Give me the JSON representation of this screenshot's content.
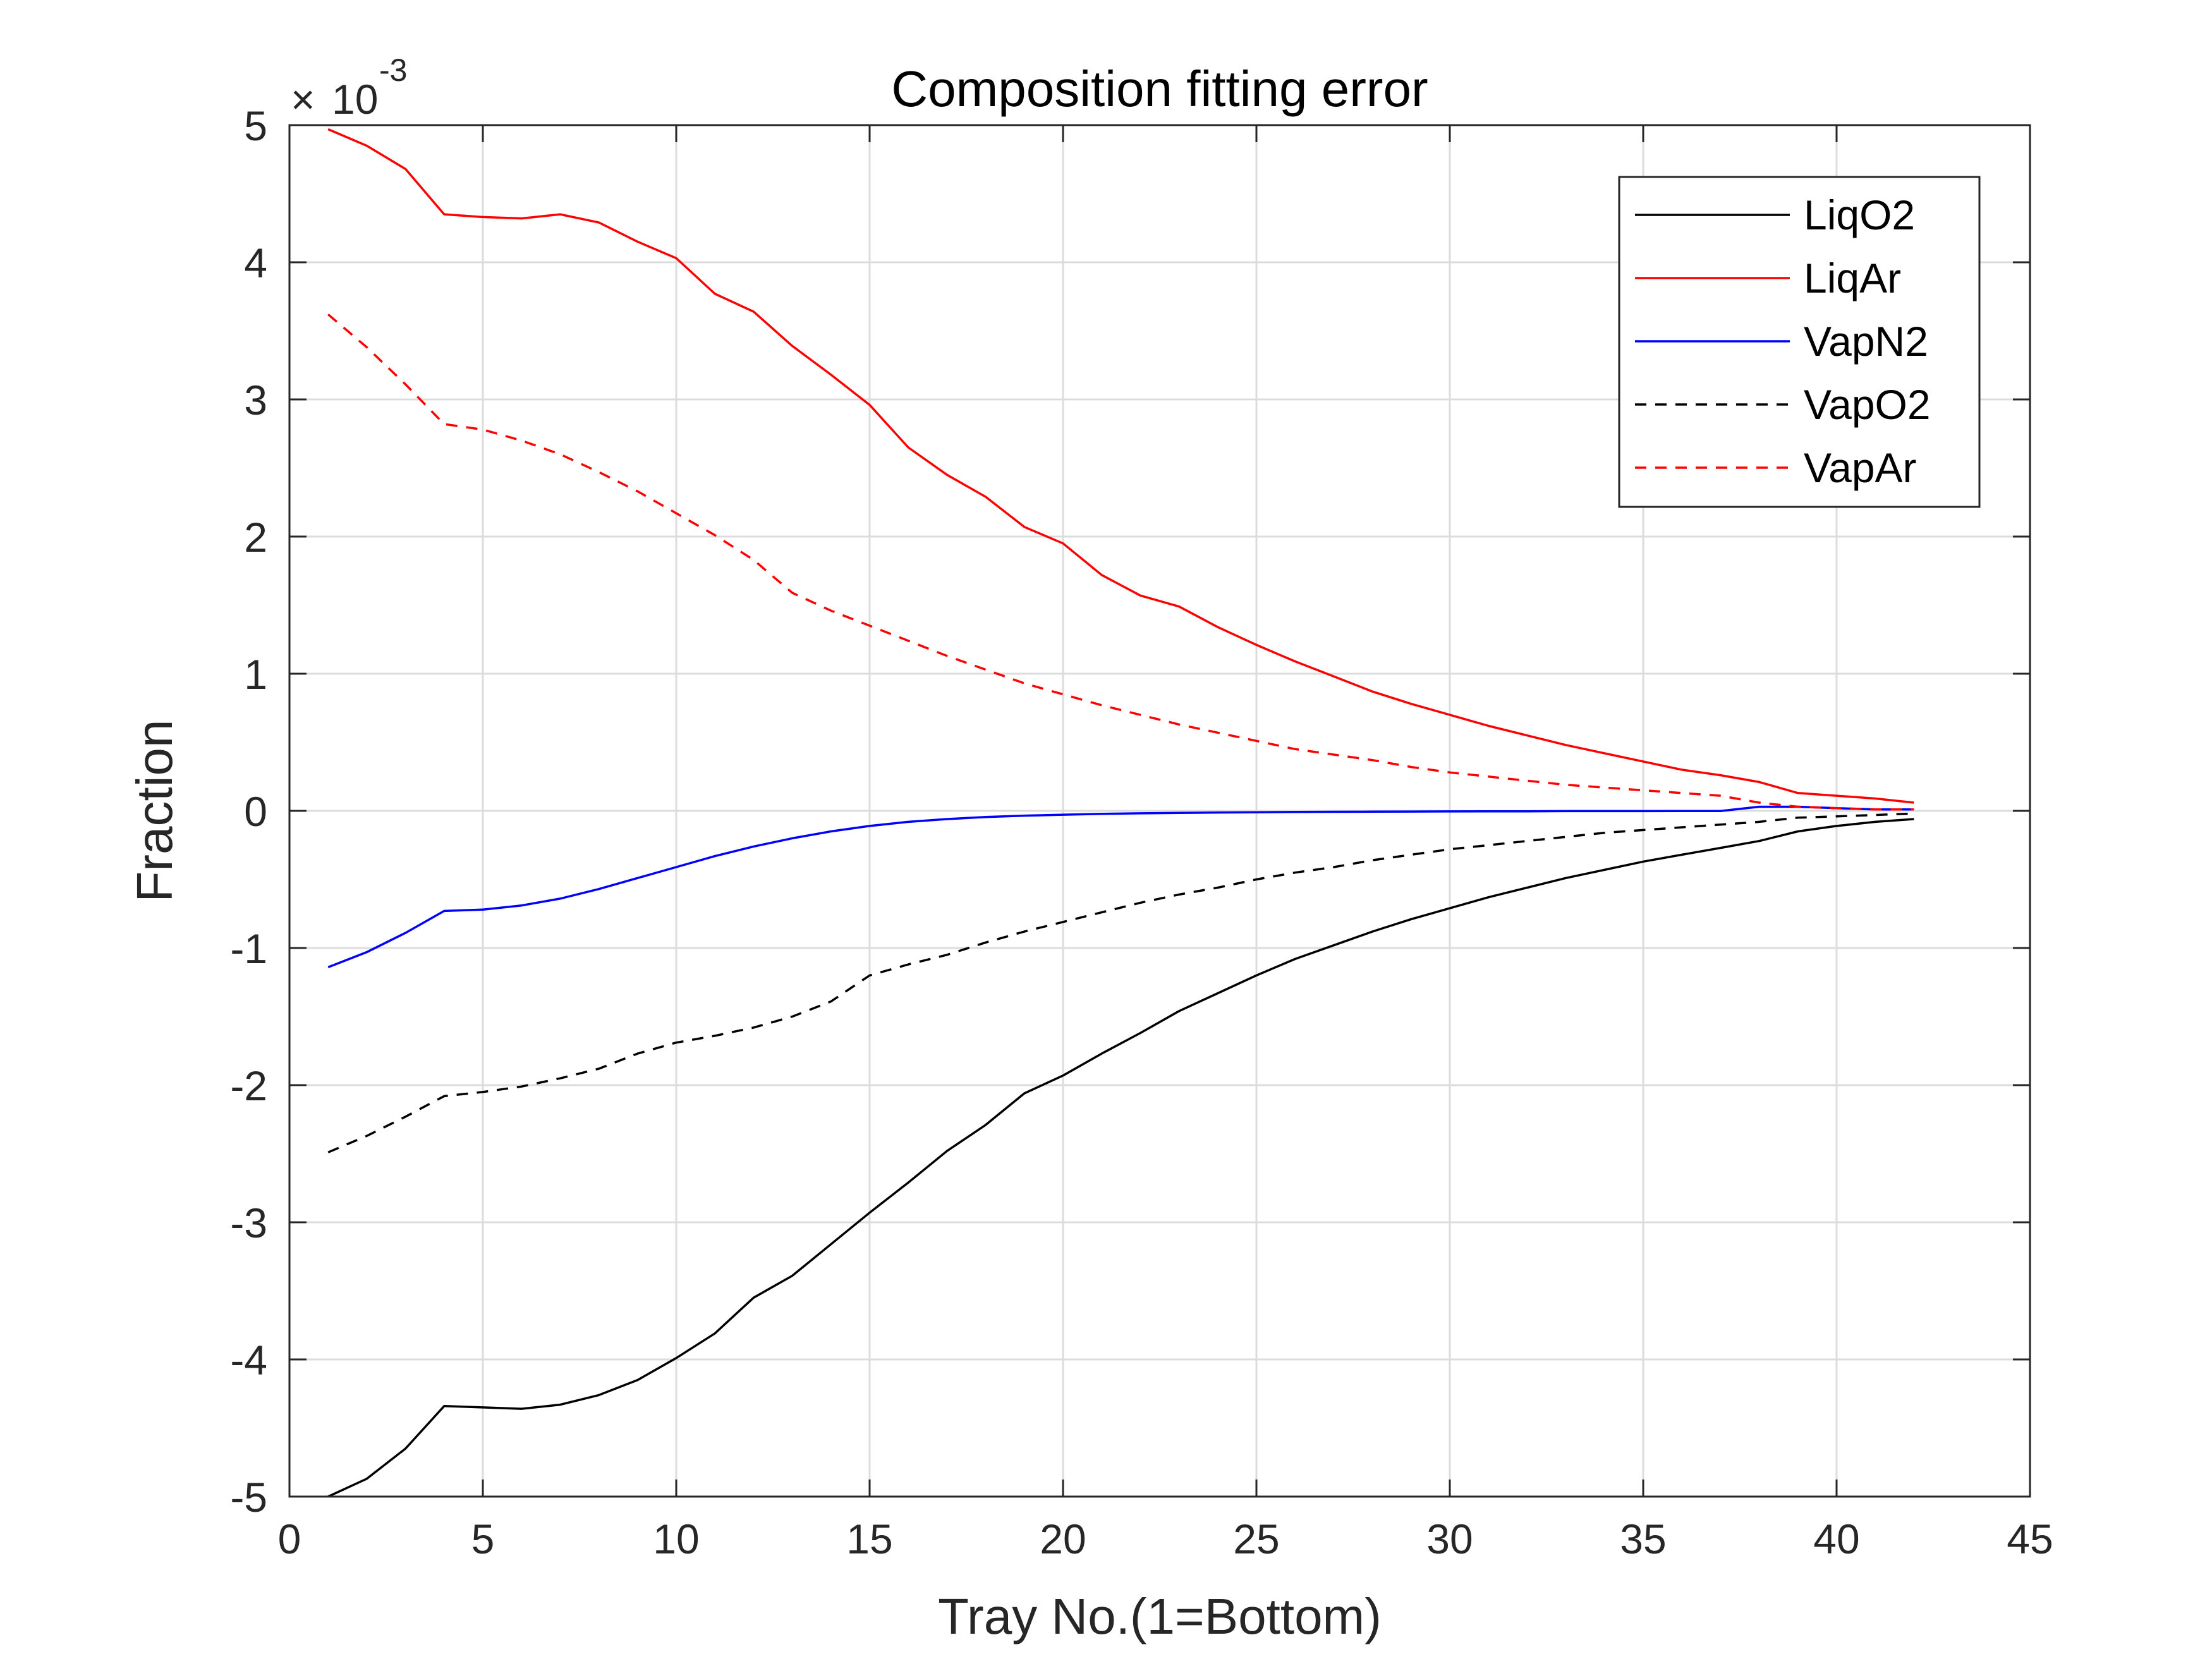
{
  "chart_data": {
    "type": "line",
    "title": "Composition fitting error",
    "xlabel": "Tray No.(1=Bottom)",
    "ylabel": "Fraction",
    "xlim": [
      0,
      45
    ],
    "ylim": [
      -5,
      5
    ],
    "y_multiplier": {
      "base": "10",
      "exponent": "-3",
      "times_sign": "×"
    },
    "xticks": [
      0,
      5,
      10,
      15,
      20,
      25,
      30,
      35,
      40,
      45
    ],
    "yticks": [
      -5,
      -4,
      -3,
      -2,
      -1,
      0,
      1,
      2,
      3,
      4,
      5
    ],
    "grid": true,
    "legend_position": "top-right",
    "x": [
      1,
      2,
      3,
      4,
      5,
      6,
      7,
      8,
      9,
      10,
      11,
      12,
      13,
      14,
      15,
      16,
      17,
      18,
      19,
      20,
      21,
      22,
      23,
      24,
      25,
      26,
      27,
      28,
      29,
      30,
      31,
      32,
      33,
      34,
      35,
      36,
      37,
      38,
      39,
      40,
      41,
      42
    ],
    "series": [
      {
        "name": "LiqO2",
        "color": "#000000",
        "dashed": false,
        "values": [
          -5.0,
          -4.87,
          -4.65,
          -4.34,
          -4.35,
          -4.36,
          -4.33,
          -4.26,
          -4.15,
          -3.99,
          -3.81,
          -3.55,
          -3.39,
          -3.16,
          -2.93,
          -2.71,
          -2.48,
          -2.29,
          -2.06,
          -1.93,
          -1.77,
          -1.62,
          -1.46,
          -1.33,
          -1.2,
          -1.08,
          -0.98,
          -0.88,
          -0.79,
          -0.71,
          -0.63,
          -0.56,
          -0.49,
          -0.43,
          -0.37,
          -0.32,
          -0.27,
          -0.22,
          -0.15,
          -0.11,
          -0.08,
          -0.06
        ]
      },
      {
        "name": "LiqAr",
        "color": "#ff0000",
        "dashed": false,
        "values": [
          4.97,
          4.85,
          4.68,
          4.35,
          4.33,
          4.32,
          4.35,
          4.29,
          4.15,
          4.03,
          3.77,
          3.64,
          3.39,
          3.18,
          2.96,
          2.65,
          2.45,
          2.29,
          2.07,
          1.95,
          1.72,
          1.57,
          1.49,
          1.34,
          1.21,
          1.09,
          0.98,
          0.87,
          0.78,
          0.7,
          0.62,
          0.55,
          0.48,
          0.42,
          0.36,
          0.3,
          0.26,
          0.21,
          0.13,
          0.11,
          0.09,
          0.06
        ]
      },
      {
        "name": "VapN2",
        "color": "#0000ff",
        "dashed": false,
        "values": [
          -1.14,
          -1.03,
          -0.89,
          -0.73,
          -0.72,
          -0.69,
          -0.64,
          -0.57,
          -0.49,
          -0.41,
          -0.33,
          -0.26,
          -0.2,
          -0.15,
          -0.11,
          -0.08,
          -0.06,
          -0.045,
          -0.035,
          -0.028,
          -0.022,
          -0.018,
          -0.015,
          -0.012,
          -0.01,
          -0.008,
          -0.007,
          -0.006,
          -0.005,
          -0.004,
          -0.003,
          -0.003,
          -0.002,
          -0.002,
          -0.002,
          -0.001,
          -0.001,
          0.03,
          0.03,
          0.02,
          0.01,
          0.01
        ]
      },
      {
        "name": "VapO2",
        "color": "#000000",
        "dashed": true,
        "values": [
          -2.49,
          -2.37,
          -2.23,
          -2.08,
          -2.05,
          -2.01,
          -1.95,
          -1.88,
          -1.77,
          -1.69,
          -1.64,
          -1.58,
          -1.5,
          -1.39,
          -1.2,
          -1.12,
          -1.05,
          -0.96,
          -0.88,
          -0.81,
          -0.74,
          -0.67,
          -0.61,
          -0.56,
          -0.5,
          -0.45,
          -0.41,
          -0.36,
          -0.32,
          -0.28,
          -0.25,
          -0.22,
          -0.19,
          -0.16,
          -0.14,
          -0.12,
          -0.1,
          -0.08,
          -0.05,
          -0.04,
          -0.03,
          -0.02
        ]
      },
      {
        "name": "VapAr",
        "color": "#ff0000",
        "dashed": true,
        "values": [
          3.62,
          3.38,
          3.11,
          2.82,
          2.78,
          2.7,
          2.6,
          2.47,
          2.33,
          2.17,
          2.01,
          1.83,
          1.59,
          1.46,
          1.35,
          1.24,
          1.13,
          1.03,
          0.93,
          0.85,
          0.77,
          0.7,
          0.63,
          0.57,
          0.51,
          0.45,
          0.41,
          0.37,
          0.32,
          0.28,
          0.25,
          0.22,
          0.19,
          0.17,
          0.15,
          0.13,
          0.11,
          0.06,
          0.03,
          0.02,
          0.01,
          0.01
        ]
      }
    ]
  }
}
